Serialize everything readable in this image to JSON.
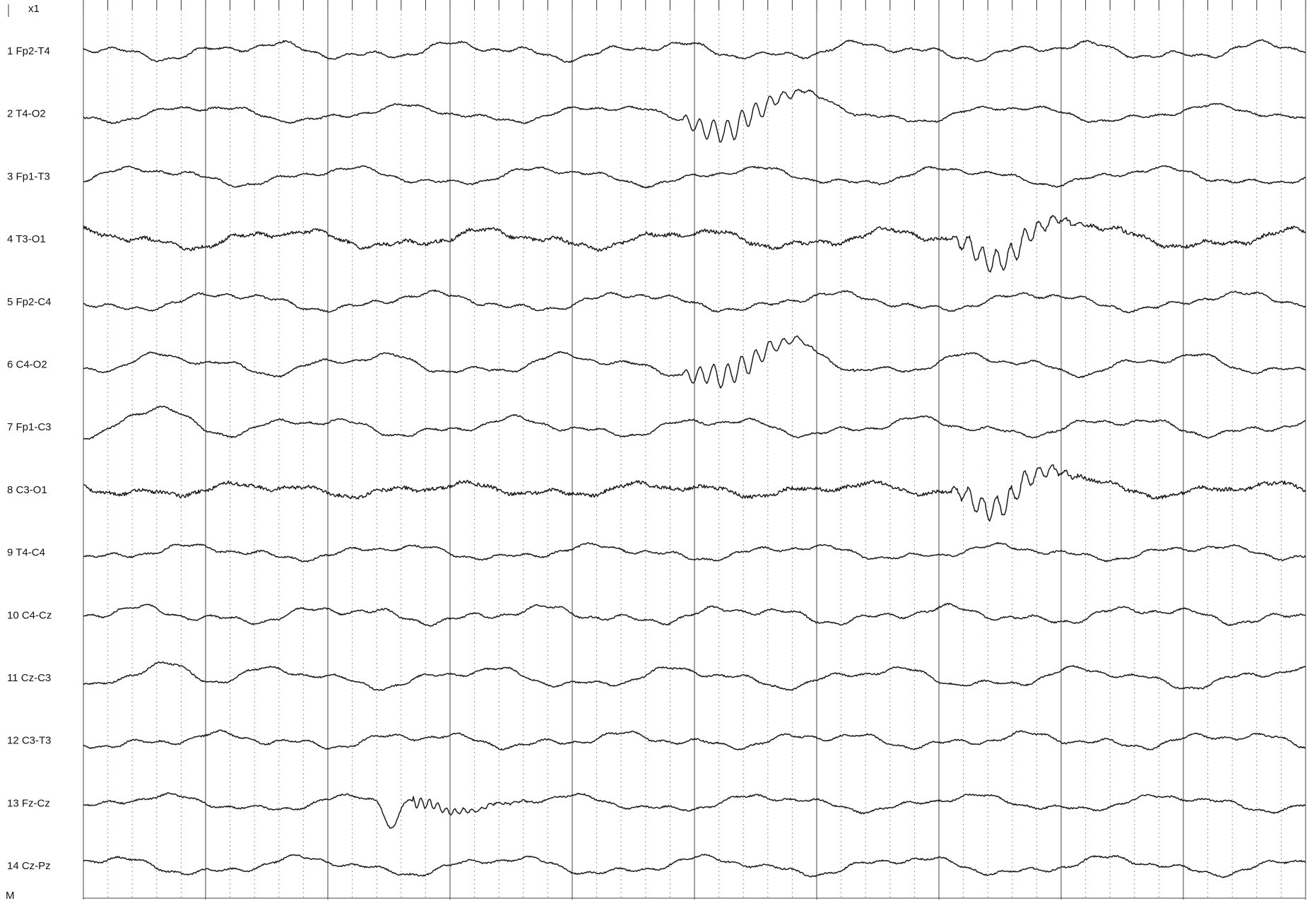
{
  "header": {
    "gain_label": "x1",
    "corner_marker": "M"
  },
  "chart_data": {
    "type": "line",
    "title": "",
    "xlabel": "",
    "ylabel": "",
    "grid": true,
    "major_divisions": 10,
    "minor_per_major": 5,
    "channels": [
      {
        "index": "1",
        "name": "Fp2-T4"
      },
      {
        "index": "2",
        "name": "T4-O2"
      },
      {
        "index": "3",
        "name": "Fp1-T3"
      },
      {
        "index": "4",
        "name": "T3-O1"
      },
      {
        "index": "5",
        "name": "Fp2-C4"
      },
      {
        "index": "6",
        "name": "C4-O2"
      },
      {
        "index": "7",
        "name": "Fp1-C3"
      },
      {
        "index": "8",
        "name": "C3-O1"
      },
      {
        "index": "9",
        "name": "T4-C4"
      },
      {
        "index": "10",
        "name": "C4-Cz"
      },
      {
        "index": "11",
        "name": "Cz-C3"
      },
      {
        "index": "12",
        "name": "C3-T3"
      },
      {
        "index": "13",
        "name": "Fz-Cz"
      },
      {
        "index": "14",
        "name": "Cz-Pz"
      }
    ],
    "events": [
      {
        "channel": "T4-O2",
        "x": 0.53,
        "type": "spike-wave burst"
      },
      {
        "channel": "C4-O2",
        "x": 0.53,
        "type": "spike-wave burst"
      },
      {
        "channel": "T3-O1",
        "x": 0.75,
        "type": "spike-wave burst"
      },
      {
        "channel": "C3-O1",
        "x": 0.75,
        "type": "spike-wave burst"
      },
      {
        "channel": "Fz-Cz",
        "x": 0.25,
        "type": "sharp wave with ringing"
      },
      {
        "channel": "Fp1-C3",
        "x": 0.05,
        "type": "slow wave artifact"
      },
      {
        "channel": "Cz-C3",
        "x": 0.05,
        "type": "slow wave artifact"
      }
    ]
  }
}
